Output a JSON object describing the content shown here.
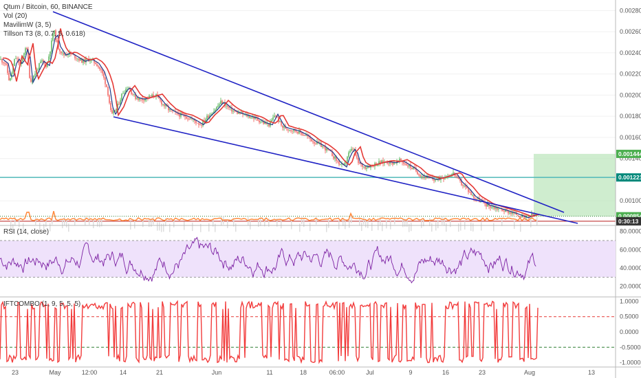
{
  "legend": {
    "title": "Qtum / Bitcoin, 60, BINANCE",
    "vol": "Vol (20)",
    "mavilim": "MavilimW (3, 5)",
    "tillson": "Tillson T3 (8, 0.7, 5, 0.618)",
    "rsi": "RSI (14, close)",
    "ift": "IFTCOMBO (1, 9, 5, 5, 5)"
  },
  "colors": {
    "candle_up": "#4caf50",
    "candle_down": "#f05350",
    "trendline": "#1f22c4",
    "tillson": "#e53935",
    "mavilim": "#1e3a8a",
    "volume_line": "#ff8a3d",
    "horizontal_line": "#4fb8b8",
    "target_box": "#bfe7bf",
    "rsi_band": "#efe2fb",
    "rsi_line": "#7b1fa2",
    "ift_line": "#f23b3b",
    "tag_green": "#4caf50",
    "tag_dark": "#333333",
    "tag_teal": "#00897b"
  },
  "chart_data": [
    {
      "type": "candlestick",
      "title": "Qtum / Bitcoin, 60, BINANCE",
      "x_ticks": [
        "23",
        "May",
        "12:00",
        "14",
        "21",
        "Jun",
        "11",
        "18",
        "06:00",
        "Jul",
        "9",
        "16",
        "23",
        "Aug",
        "13"
      ],
      "y_ticks": [
        "0.002800",
        "0.002600",
        "0.002400",
        "0.002200",
        "0.002000",
        "0.001800",
        "0.001600",
        "0.001400",
        "0.001000"
      ],
      "ylim": [
        0.00078,
        0.0029
      ],
      "price_tags": [
        "0.001444",
        "0.001221",
        "0.000854",
        "0:30:13"
      ],
      "price_tag_values": [
        0.001444,
        0.001221,
        0.000854,
        0.000807
      ],
      "path": [
        [
          0,
          0.00234
        ],
        [
          8,
          0.0023
        ],
        [
          14,
          0.00212
        ],
        [
          22,
          0.00236
        ],
        [
          30,
          0.00228
        ],
        [
          38,
          0.00248
        ],
        [
          44,
          0.00212
        ],
        [
          52,
          0.00222
        ],
        [
          60,
          0.00232
        ],
        [
          68,
          0.00228
        ],
        [
          74,
          0.00246
        ],
        [
          78,
          0.00262
        ],
        [
          84,
          0.00246
        ],
        [
          92,
          0.00238
        ],
        [
          100,
          0.0024
        ],
        [
          110,
          0.00236
        ],
        [
          120,
          0.00232
        ],
        [
          130,
          0.00234
        ],
        [
          140,
          0.0023
        ],
        [
          148,
          0.00222
        ],
        [
          156,
          0.00206
        ],
        [
          162,
          0.0018
        ],
        [
          170,
          0.00188
        ],
        [
          178,
          0.00202
        ],
        [
          186,
          0.00208
        ],
        [
          196,
          0.00198
        ],
        [
          206,
          0.00196
        ],
        [
          216,
          0.00198
        ],
        [
          226,
          0.002
        ],
        [
          236,
          0.00192
        ],
        [
          246,
          0.00186
        ],
        [
          258,
          0.00182
        ],
        [
          270,
          0.0018
        ],
        [
          282,
          0.00176
        ],
        [
          292,
          0.00172
        ],
        [
          302,
          0.0018
        ],
        [
          312,
          0.00186
        ],
        [
          322,
          0.00194
        ],
        [
          332,
          0.00188
        ],
        [
          342,
          0.00184
        ],
        [
          352,
          0.00182
        ],
        [
          362,
          0.0018
        ],
        [
          372,
          0.00178
        ],
        [
          382,
          0.00174
        ],
        [
          392,
          0.00172
        ],
        [
          400,
          0.00182
        ],
        [
          410,
          0.0017
        ],
        [
          420,
          0.00168
        ],
        [
          432,
          0.00166
        ],
        [
          444,
          0.00162
        ],
        [
          456,
          0.00156
        ],
        [
          468,
          0.00152
        ],
        [
          480,
          0.00146
        ],
        [
          492,
          0.00136
        ],
        [
          500,
          0.00132
        ],
        [
          506,
          0.00144
        ],
        [
          514,
          0.0015
        ],
        [
          520,
          0.00136
        ],
        [
          530,
          0.00132
        ],
        [
          542,
          0.00134
        ],
        [
          552,
          0.00136
        ],
        [
          562,
          0.00137
        ],
        [
          572,
          0.00136
        ],
        [
          582,
          0.00138
        ],
        [
          592,
          0.00134
        ],
        [
          602,
          0.0013
        ],
        [
          612,
          0.00124
        ],
        [
          622,
          0.00122
        ],
        [
          632,
          0.0012
        ],
        [
          642,
          0.00122
        ],
        [
          652,
          0.00124
        ],
        [
          660,
          0.00126
        ],
        [
          668,
          0.00118
        ],
        [
          678,
          0.00112
        ],
        [
          688,
          0.00104
        ],
        [
          698,
          0.001
        ],
        [
          708,
          0.00096
        ],
        [
          718,
          0.00094
        ],
        [
          728,
          0.00092
        ],
        [
          738,
          0.0009
        ],
        [
          748,
          0.00088
        ],
        [
          756,
          0.00086
        ],
        [
          764,
          0.00084
        ],
        [
          772,
          0.00086
        ],
        [
          780,
          0.00087
        ]
      ]
    },
    {
      "type": "line",
      "title": "RSI (14, close)",
      "y_ticks": [
        "80.0000",
        "60.0000",
        "40.0000",
        "20.0000"
      ],
      "ylim": [
        10,
        85
      ],
      "band": [
        30,
        70
      ],
      "seed": 7
    },
    {
      "type": "line",
      "title": "IFTCOMBO (1, 9, 5, 5, 5)",
      "y_ticks": [
        "1.0000",
        "0.5000",
        "0.0000",
        "-0.5000",
        "-1.0000"
      ],
      "ylim": [
        -1.1,
        1.1
      ],
      "levels": [
        0.5,
        -0.5
      ],
      "seed": 13
    }
  ]
}
